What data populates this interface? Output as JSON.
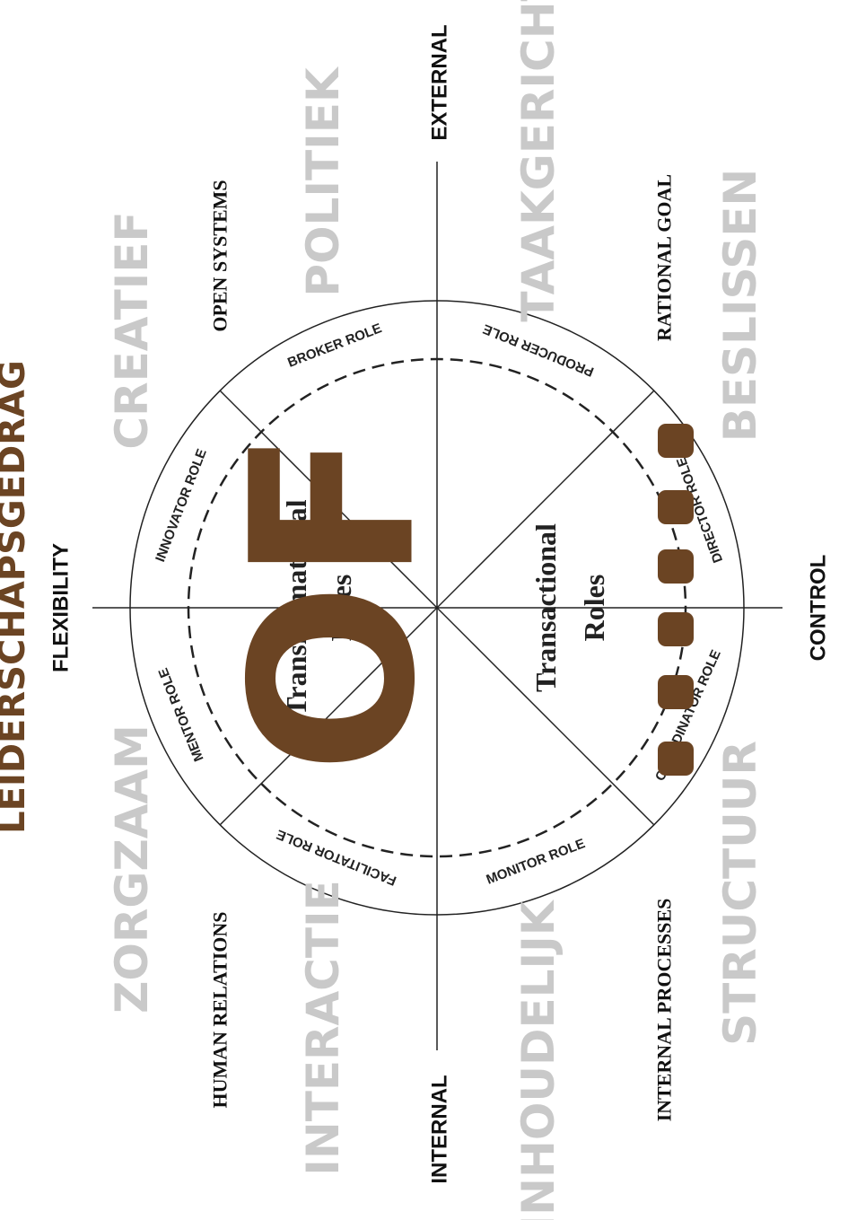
{
  "title": "LEIDERSCHAPSGEDRAG",
  "overlay": "OF",
  "axes": [
    "FLEXIBILITY",
    "CONTROL",
    "EXTERNAL",
    "INTERNAL"
  ],
  "models": [
    "OPEN SYSTEMS",
    "HUMAN RELATIONS",
    "RATIONAL GOAL",
    "INTERNAL PROCESSES"
  ],
  "styles": [
    "CREATIEF",
    "ZORGZAAM",
    "POLITIEK",
    "INTERACTIE",
    "TAAKGERICHT",
    "INHOUDELIJK",
    "BESLISSEN",
    "STRUCTUUR"
  ],
  "roles": [
    "BROKER ROLE",
    "INNOVATOR ROLE",
    "MENTOR ROLE",
    "FACILITATOR ROLE",
    "MONITOR ROLE",
    "COORDINATOR ROLE",
    "DIRECTOR ROLE",
    "PRODUCER ROLE"
  ],
  "role_groups": [
    [
      "Transformational",
      "Roles"
    ],
    [
      "Transactional",
      "Roles"
    ]
  ]
}
